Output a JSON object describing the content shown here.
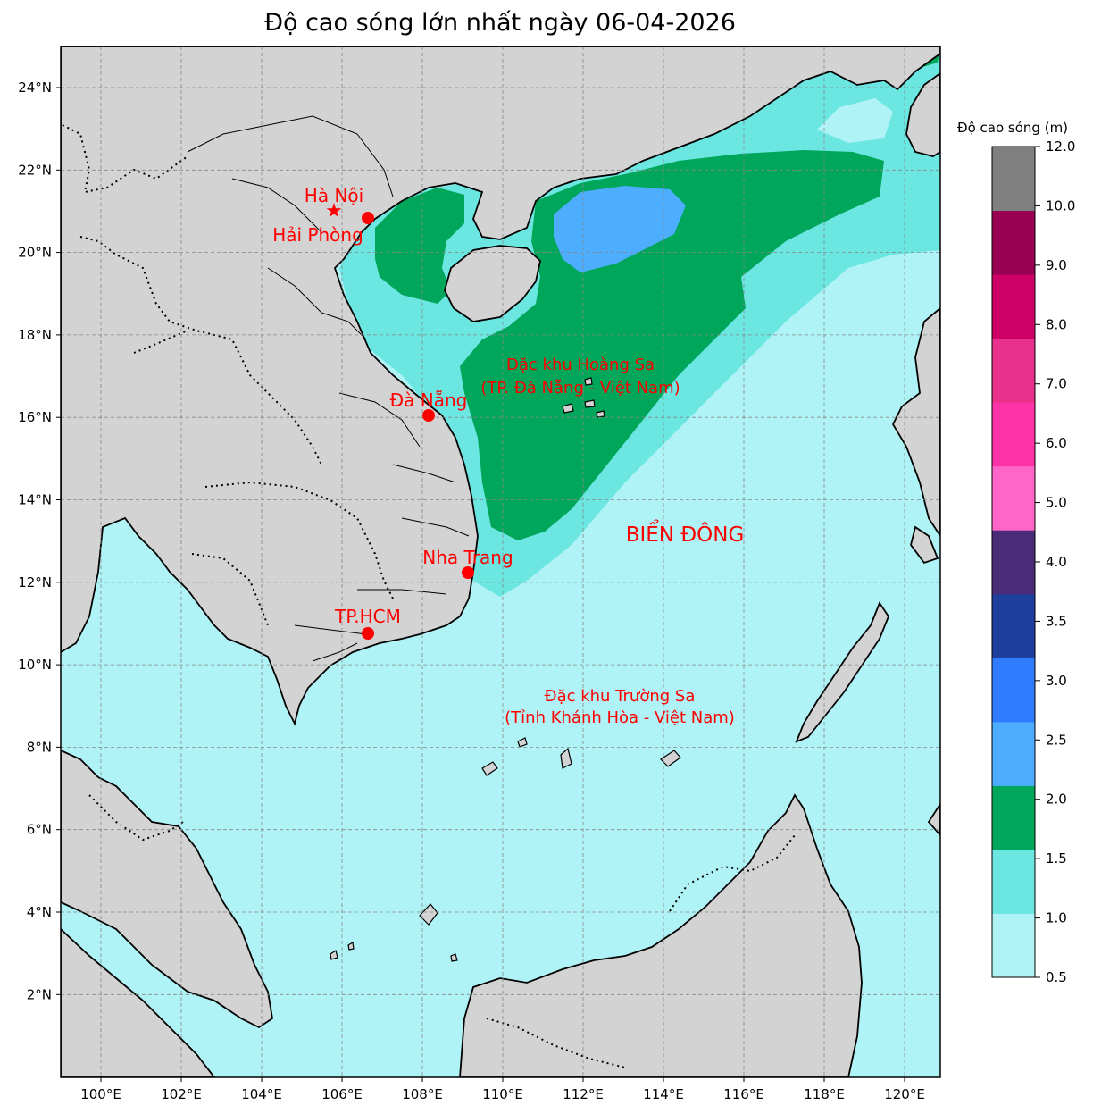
{
  "title": "Độ cao sóng lớn nhất ngày 06-04-2026",
  "colorbar": {
    "label": "Độ cao sóng (m)",
    "ticks": [
      "0.5",
      "1.0",
      "1.5",
      "2.0",
      "2.5",
      "3.0",
      "3.5",
      "4.0",
      "5.0",
      "6.0",
      "7.0",
      "8.0",
      "9.0",
      "10.0",
      "12.0"
    ],
    "colors": [
      "#aff3f6",
      "#6be6e1",
      "#00a65a",
      "#4dadff",
      "#2f7cff",
      "#1f3f9c",
      "#4a2b78",
      "#ff66c7",
      "#ff33a8",
      "#e8308c",
      "#cc0066",
      "#990052",
      "#808080"
    ]
  },
  "axes": {
    "lon_ticks": [
      "100°E",
      "102°E",
      "104°E",
      "106°E",
      "108°E",
      "110°E",
      "112°E",
      "114°E",
      "116°E",
      "118°E",
      "120°E"
    ],
    "lat_ticks": [
      "24°N",
      "22°N",
      "20°N",
      "18°N",
      "16°N",
      "14°N",
      "12°N",
      "10°N",
      "8°N",
      "6°N",
      "4°N",
      "2°N"
    ]
  },
  "cities": [
    {
      "name": "Hà Nội",
      "marker": "star"
    },
    {
      "name": "Hải Phòng",
      "marker": "dot"
    },
    {
      "name": "Đà Nẵng",
      "marker": "dot"
    },
    {
      "name": "Nha Trang",
      "marker": "dot"
    },
    {
      "name": "TP.HCM",
      "marker": "dot"
    }
  ],
  "region_labels": {
    "hoang_sa_1": "Đặc khu Hoàng Sa",
    "hoang_sa_2": "(TP. Đà Nẵng - Việt Nam)",
    "truong_sa_1": "Đặc khu Trường Sa",
    "truong_sa_2": "(Tỉnh Khánh Hòa - Việt Nam)",
    "sea": "BIỂN ĐÔNG"
  },
  "colors": {
    "land": "#d3d3d3",
    "sea_low": "#aff3f6",
    "sea_mid": "#6be6e1",
    "sea_high": "#00a65a",
    "sea_peak": "#4dadff",
    "label": "#ff0000"
  }
}
